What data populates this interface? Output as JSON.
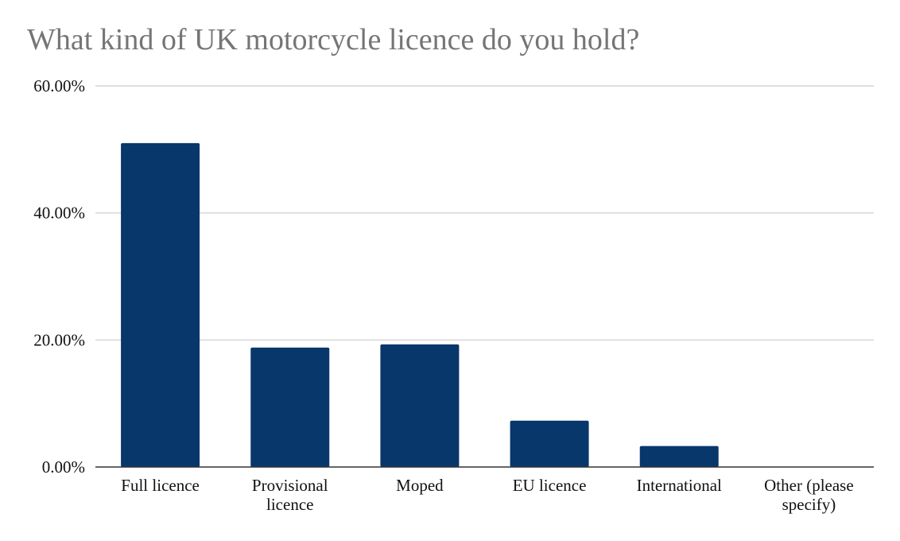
{
  "chart_data": {
    "type": "bar",
    "title": "What kind of UK motorcycle licence do you hold?",
    "xlabel": "",
    "ylabel": "",
    "categories": [
      [
        "Full licence"
      ],
      [
        "Provisional",
        "licence"
      ],
      [
        "Moped"
      ],
      [
        "EU licence"
      ],
      [
        "International"
      ],
      [
        "Other (please",
        "specify)"
      ]
    ],
    "values": [
      51.0,
      18.8,
      19.3,
      7.3,
      3.3,
      0.0
    ],
    "ylim": [
      0,
      60
    ],
    "yticks": [
      0,
      20,
      40,
      60
    ],
    "ytick_labels": [
      "0.00%",
      "20.00%",
      "40.00%",
      "60.00%"
    ],
    "grid": true,
    "bar_color": "#08376b"
  }
}
